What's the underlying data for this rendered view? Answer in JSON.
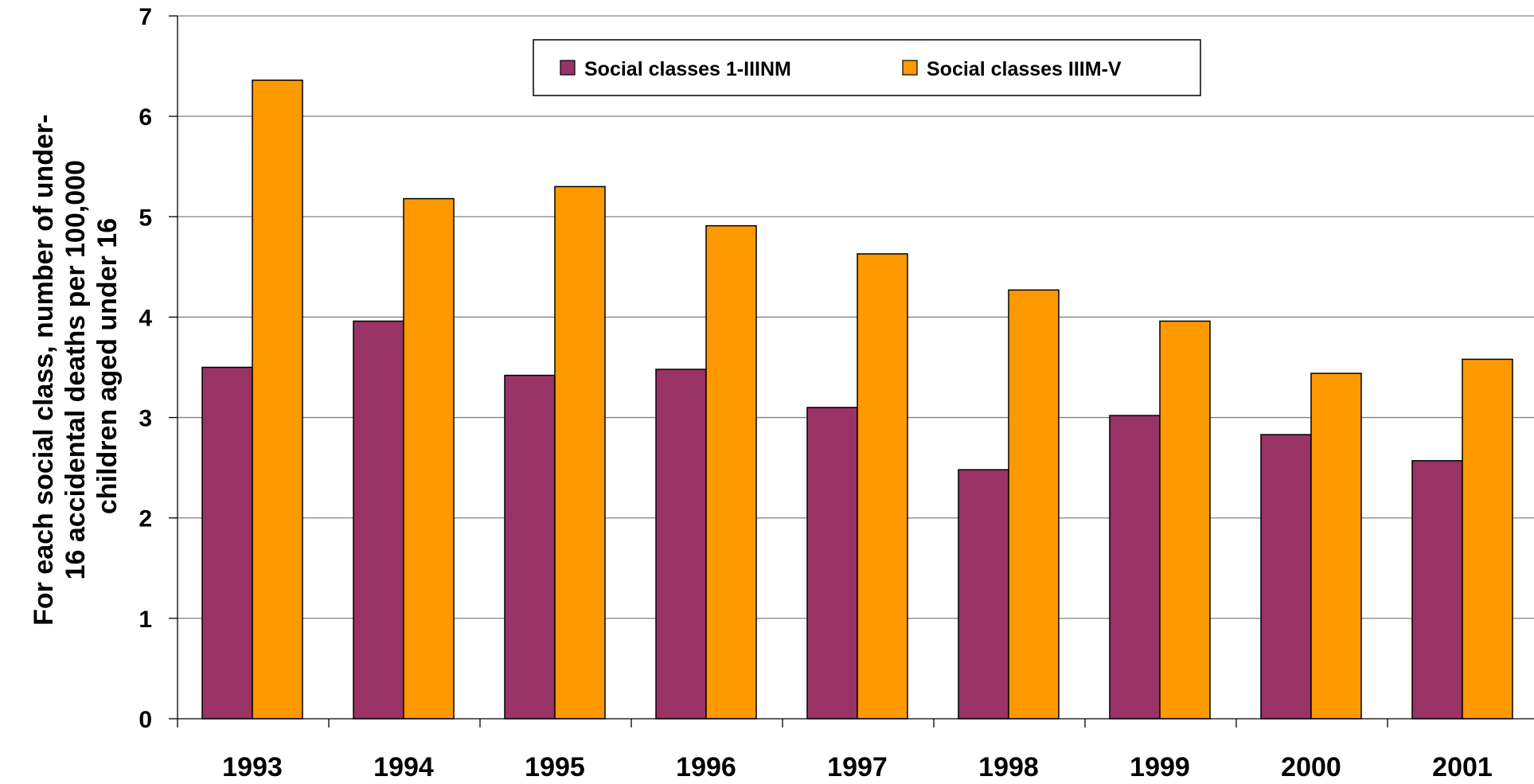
{
  "chart_data": {
    "type": "bar",
    "title": "",
    "xlabel": "",
    "ylabel_lines": [
      "For each social class, number of under-",
      "16 accidental deaths per 100,000",
      "children aged under 16"
    ],
    "categories": [
      "1993",
      "1994",
      "1995",
      "1996",
      "1997",
      "1998",
      "1999",
      "2000",
      "2001"
    ],
    "series": [
      {
        "name": "Social classes 1-IIINM",
        "color": "#993366",
        "values": [
          3.5,
          3.96,
          3.42,
          3.48,
          3.1,
          2.48,
          3.02,
          2.83,
          2.57
        ]
      },
      {
        "name": "Social classes IIIM-V",
        "color": "#FF9900",
        "values": [
          6.36,
          5.18,
          5.3,
          4.91,
          4.63,
          4.27,
          3.96,
          3.44,
          3.58
        ]
      }
    ],
    "ylim": [
      0,
      7
    ],
    "yticks": [
      "0",
      "1",
      "2",
      "3",
      "4",
      "5",
      "6",
      "7"
    ],
    "grid": "horizontal",
    "legend_position": "top-center"
  }
}
